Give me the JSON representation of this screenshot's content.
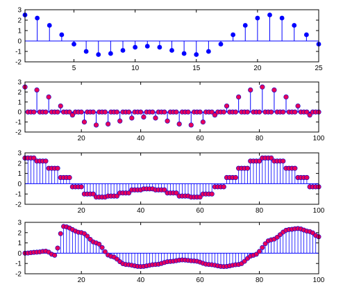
{
  "chart_data": [
    {
      "type": "stem",
      "marker_color": "#0000ff",
      "x": [
        1,
        2,
        3,
        4,
        5,
        6,
        7,
        8,
        9,
        10,
        11,
        12,
        13,
        14,
        15,
        16,
        17,
        18,
        19,
        20,
        21,
        22,
        23,
        24,
        25
      ],
      "values": [
        2.5,
        2.2,
        1.5,
        0.6,
        -0.3,
        -1.0,
        -1.3,
        -1.2,
        -0.9,
        -0.6,
        -0.5,
        -0.6,
        -0.9,
        -1.2,
        -1.3,
        -1.0,
        -0.3,
        0.6,
        1.5,
        2.2,
        2.5,
        2.2,
        1.5,
        0.6,
        -0.3
      ],
      "xlim": [
        1,
        25
      ],
      "ylim": [
        -2,
        3
      ],
      "xticks": [
        5,
        10,
        15,
        20,
        25
      ],
      "yticks": [
        -2,
        -1,
        0,
        1,
        2,
        3
      ]
    },
    {
      "type": "stem",
      "marker_color": "#e8005a",
      "stem_color": "#0000ff",
      "x_generated": "1..100",
      "upsample_factor": 4,
      "source": [
        2.5,
        2.2,
        1.5,
        0.6,
        -0.3,
        -1.0,
        -1.3,
        -1.2,
        -0.9,
        -0.6,
        -0.5,
        -0.6,
        -0.9,
        -1.2,
        -1.3,
        -1.0,
        -0.3,
        0.6,
        1.5,
        2.2,
        2.5,
        2.2,
        1.5,
        0.6,
        -0.3
      ],
      "xlim": [
        1,
        100
      ],
      "ylim": [
        -2,
        3
      ],
      "xticks": [
        20,
        40,
        60,
        80,
        100
      ],
      "yticks": [
        -2,
        -1,
        0,
        1,
        2,
        3
      ]
    },
    {
      "type": "stem",
      "marker_color": "#e8005a",
      "stem_color": "#0000ff",
      "x_generated": "1..100",
      "hold_factor": 4,
      "source": [
        2.5,
        2.2,
        1.5,
        0.6,
        -0.3,
        -1.0,
        -1.3,
        -1.2,
        -0.9,
        -0.6,
        -0.5,
        -0.6,
        -0.9,
        -1.2,
        -1.3,
        -1.0,
        -0.3,
        0.6,
        1.5,
        2.2,
        2.5,
        2.2,
        1.5,
        0.6,
        -0.3
      ],
      "xlim": [
        1,
        100
      ],
      "ylim": [
        -2,
        3
      ],
      "xticks": [
        20,
        40,
        60,
        80,
        100
      ],
      "yticks": [
        -2,
        -1,
        0,
        1,
        2,
        3
      ]
    },
    {
      "type": "stem",
      "marker_color": "#e8005a",
      "stem_color": "#0000ff",
      "x_generated": "1..100",
      "keypoints": [
        [
          1,
          0
        ],
        [
          5,
          0.1
        ],
        [
          8,
          0.2
        ],
        [
          11,
          -0.2
        ],
        [
          14,
          2.6
        ],
        [
          20,
          2.0
        ],
        [
          25,
          1.0
        ],
        [
          30,
          -0.3
        ],
        [
          35,
          -1.1
        ],
        [
          40,
          -1.3
        ],
        [
          45,
          -1.1
        ],
        [
          50,
          -0.8
        ],
        [
          54,
          -0.65
        ],
        [
          58,
          -0.75
        ],
        [
          63,
          -1.1
        ],
        [
          68,
          -1.3
        ],
        [
          73,
          -1.1
        ],
        [
          78,
          -0.2
        ],
        [
          84,
          1.3
        ],
        [
          90,
          2.3
        ],
        [
          93,
          2.4
        ],
        [
          97,
          2.1
        ],
        [
          100,
          1.6
        ]
      ],
      "xlim": [
        1,
        100
      ],
      "ylim": [
        -2,
        3
      ],
      "xticks": [
        20,
        40,
        60,
        80,
        100
      ],
      "yticks": [
        -2,
        -1,
        0,
        1,
        2,
        3
      ]
    }
  ]
}
